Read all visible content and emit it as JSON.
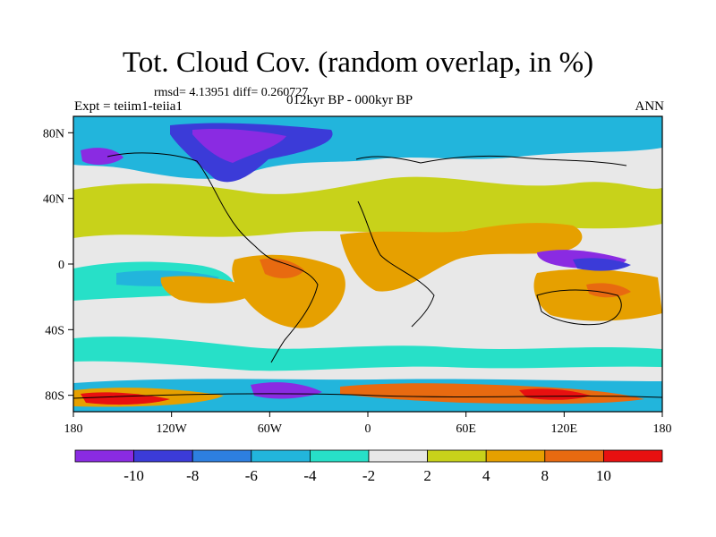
{
  "title": "Tot. Cloud Cov. (random overlap, in %)",
  "stats": "rmsd= 4.13951 diff= 0.260727",
  "experiment": "Expt = teiim1-teiia1",
  "period": "012kyr BP - 000kyr BP",
  "season": "ANN",
  "lat_labels": [
    "80N",
    "40N",
    "0",
    "40S",
    "80S"
  ],
  "lon_labels": [
    "180",
    "120W",
    "60W",
    "0",
    "60E",
    "120E",
    "180"
  ],
  "colorbar": {
    "colors": [
      "#8a2be2",
      "#3b3bd8",
      "#2d7fe0",
      "#22b5dc",
      "#27e0c8",
      "#e8e8e8",
      "#c8d21a",
      "#e6a000",
      "#e86a10",
      "#e81010"
    ],
    "labels": [
      "-10",
      "-8",
      "-6",
      "-4",
      "-2",
      "2",
      "4",
      "8",
      "10"
    ]
  },
  "map": {
    "type": "filled-contour",
    "variable": "total cloud cover difference (%)",
    "lat_range": [
      -90,
      90
    ],
    "lon_range": [
      -180,
      180
    ],
    "features": [
      {
        "region": "North America / Arctic",
        "sign": "negative",
        "max_abs": 10
      },
      {
        "region": "Northern Hemisphere midlatitude belt",
        "sign": "positive",
        "max_abs": 4
      },
      {
        "region": "Eastern equatorial Pacific",
        "sign": "negative",
        "max_abs": 6
      },
      {
        "region": "South America / tropical Atlantic",
        "sign": "positive",
        "max_abs": 10
      },
      {
        "region": "Tropical Africa / Arabia",
        "sign": "positive",
        "max_abs": 8
      },
      {
        "region": "Maritime continent / western Pacific",
        "sign": "negative",
        "max_abs": 10
      },
      {
        "region": "Australia",
        "sign": "positive",
        "max_abs": 8
      },
      {
        "region": "Southern Ocean / Antarctica margin",
        "sign": "mixed",
        "max_abs": 10
      }
    ]
  }
}
